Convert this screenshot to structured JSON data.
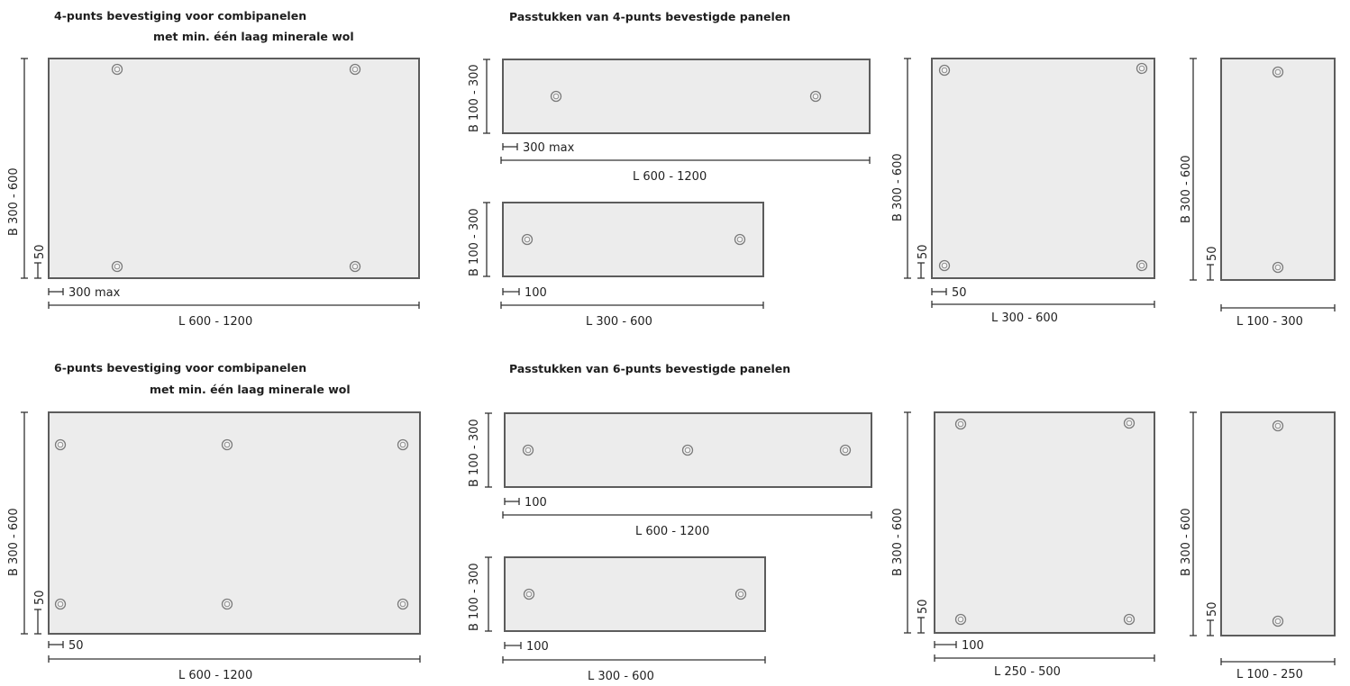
{
  "titles": {
    "four_point_line1": "4-punts bevestiging voor combipanelen",
    "four_point_line2": "met min. één laag minerale wol",
    "four_point_fits": "Passtukken van 4-punts bevestigde panelen",
    "six_point_line1": "6-punts bevestiging voor combipanelen",
    "six_point_line2": "met min. één laag minerale wol",
    "six_point_fits": "Passtukken van 6-punts bevestigde panelen"
  },
  "panels": [
    {
      "id": "4p-main",
      "width_label": "B 300 - 600",
      "length_label": "L  600 - 1200",
      "edge_label": "50",
      "spacing_label": "300 max"
    },
    {
      "id": "4p-fit-long",
      "width_label": "B 100 - 300",
      "length_label": "L  600 - 1200",
      "edge_label": "",
      "spacing_label": "300 max"
    },
    {
      "id": "4p-fit-short",
      "width_label": "B 100 - 300",
      "length_label": "L  300 - 600",
      "edge_label": "",
      "spacing_label": "100"
    },
    {
      "id": "4p-fit-square",
      "width_label": "B 300 - 600",
      "length_label": "L 300 - 600",
      "edge_label": "50",
      "spacing_label": "50"
    },
    {
      "id": "4p-fit-narrow",
      "width_label": "B 300 - 600",
      "length_label": "L 100 - 300",
      "edge_label": "50",
      "spacing_label": ""
    },
    {
      "id": "6p-main",
      "width_label": "B 300 - 600",
      "length_label": "L  600 - 1200",
      "edge_label": "50",
      "spacing_label": "50"
    },
    {
      "id": "6p-fit-long",
      "width_label": "B 100 - 300",
      "length_label": "L  600 - 1200",
      "edge_label": "",
      "spacing_label": "100"
    },
    {
      "id": "6p-fit-short",
      "width_label": "B 100 - 300",
      "length_label": "L  300 - 600",
      "edge_label": "",
      "spacing_label": "100"
    },
    {
      "id": "6p-fit-square",
      "width_label": "B 300 - 600",
      "length_label": "L 250 - 500",
      "edge_label": "50",
      "spacing_label": "100"
    },
    {
      "id": "6p-fit-narrow",
      "width_label": "B 300 - 600",
      "length_label": "L 100 - 250",
      "edge_label": "50",
      "spacing_label": ""
    }
  ]
}
